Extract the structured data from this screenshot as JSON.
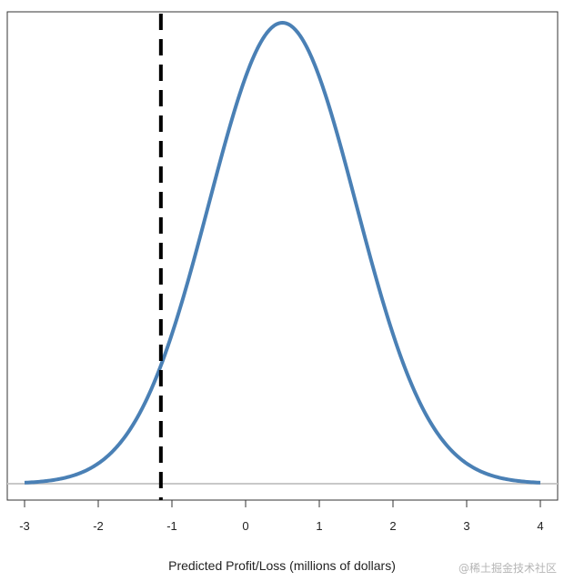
{
  "chart_data": {
    "type": "line",
    "xlabel": "Predicted Profit/Loss (millions of dollars)",
    "ylabel": "",
    "xlim": [
      -3.3,
      4.3
    ],
    "xticks": [
      -3,
      -2,
      -1,
      0,
      1,
      2,
      3,
      4
    ],
    "grid": false,
    "distribution": {
      "mean": 0.5,
      "sd": 1.0
    },
    "series": [
      {
        "color": "#4a80b5",
        "x_range": [
          -3,
          4
        ]
      }
    ],
    "reference_line": {
      "x": -1.15,
      "style": "dashed",
      "color": "#000000"
    },
    "baseline": {
      "y": 0,
      "color": "#c8c8c8"
    }
  },
  "watermark": "@稀土掘金技术社区"
}
